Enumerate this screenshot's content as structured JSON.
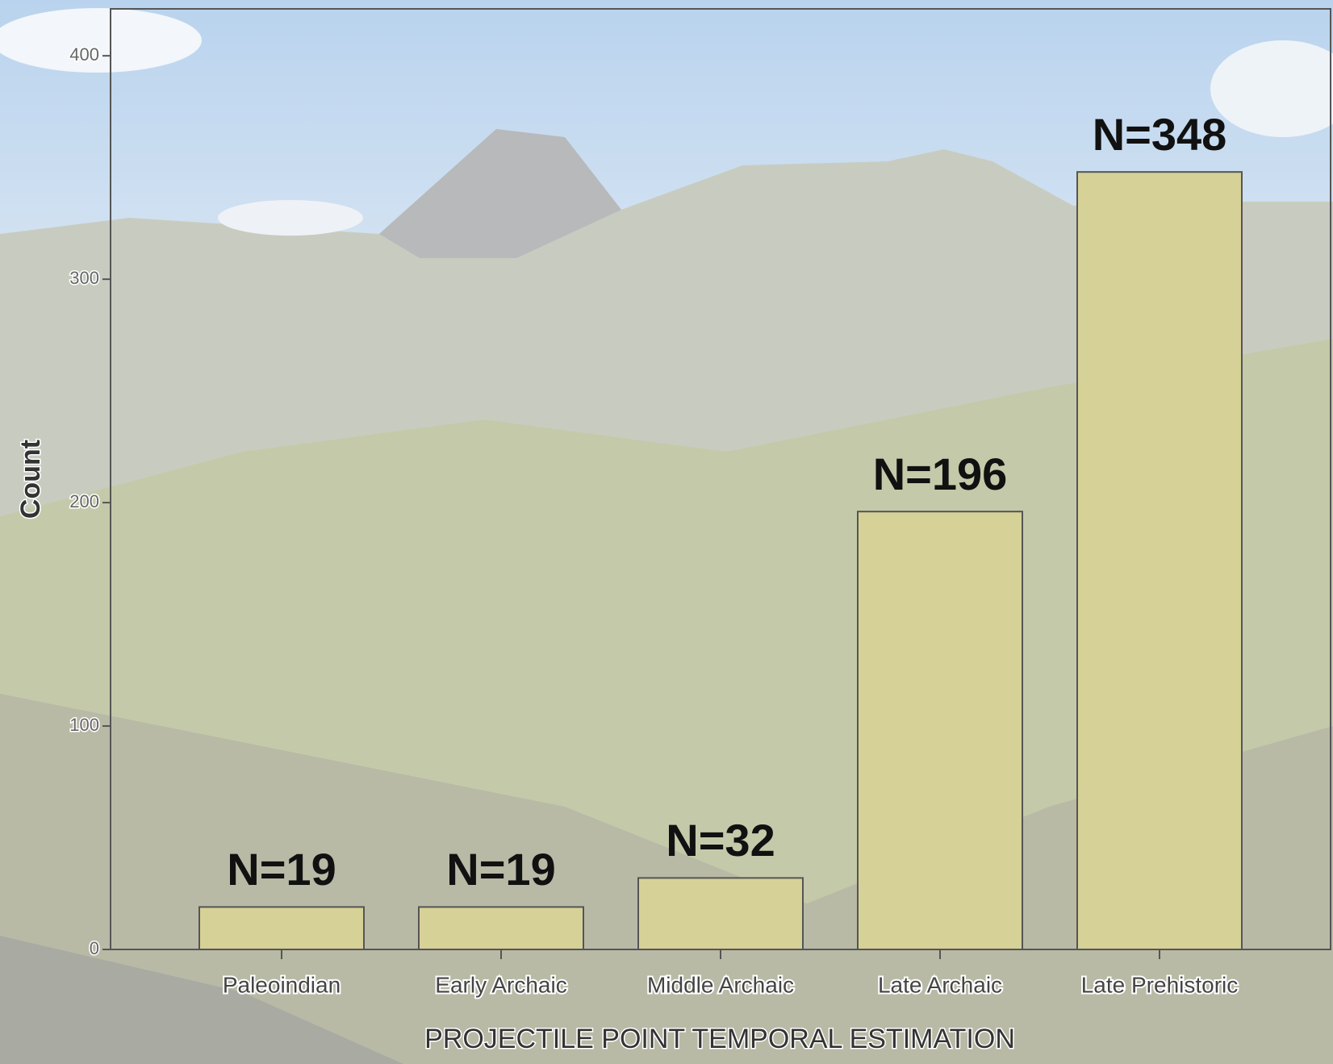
{
  "chart_data": {
    "type": "bar",
    "x_label": "PROJECTILE POINT TEMPORAL ESTIMATION",
    "y_label": "Count",
    "categories": [
      "Paleoindian",
      "Early Archaic",
      "Middle Archaic",
      "Late Archaic",
      "Late Prehistoric"
    ],
    "values": [
      19,
      19,
      32,
      196,
      348
    ],
    "value_labels": [
      "N=19",
      "N=19",
      "N=32",
      "N=196",
      "N=348"
    ],
    "color": "#d6d196",
    "ylim": [
      0,
      421
    ],
    "yticks": [
      0,
      100,
      200,
      300,
      400
    ]
  }
}
